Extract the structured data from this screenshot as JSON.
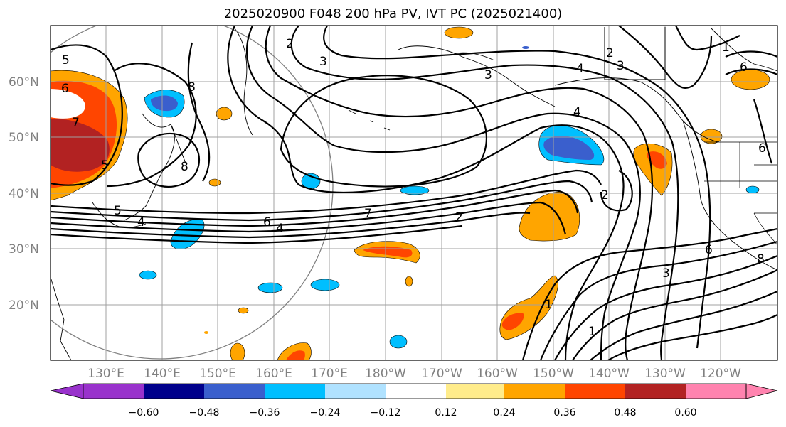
{
  "title": "2025020900 F048 200 hPa PV, IVT PC (2025021400)",
  "lat_labels": [
    "60°N",
    "50°N",
    "40°N",
    "30°N",
    "20°N"
  ],
  "lon_labels": [
    "130°E",
    "140°E",
    "150°E",
    "160°E",
    "170°E",
    "180°W",
    "170°W",
    "160°W",
    "150°W",
    "140°W",
    "130°W",
    "120°W"
  ],
  "colorbar": {
    "tick_labels": [
      "−0.60",
      "−0.48",
      "−0.36",
      "−0.24",
      "−0.12",
      "0.12",
      "0.24",
      "0.36",
      "0.48",
      "0.60"
    ],
    "colors": [
      "#9932CC",
      "#00008B",
      "#3A5FCD",
      "#00BFFF",
      "#B0E2FF",
      "#FFFFFF",
      "#FFEC8B",
      "#FFA500",
      "#FF4500",
      "#B22222",
      "#FF83AF"
    ]
  },
  "contour_labels": [
    "5",
    "6",
    "7",
    "8",
    "5",
    "2",
    "3",
    "3",
    "4",
    "2",
    "3",
    "4",
    "5",
    "6",
    "7",
    "6",
    "4",
    "2",
    "2",
    "1",
    "1",
    "3",
    "6",
    "6",
    "8",
    "8",
    "1",
    "4"
  ]
}
